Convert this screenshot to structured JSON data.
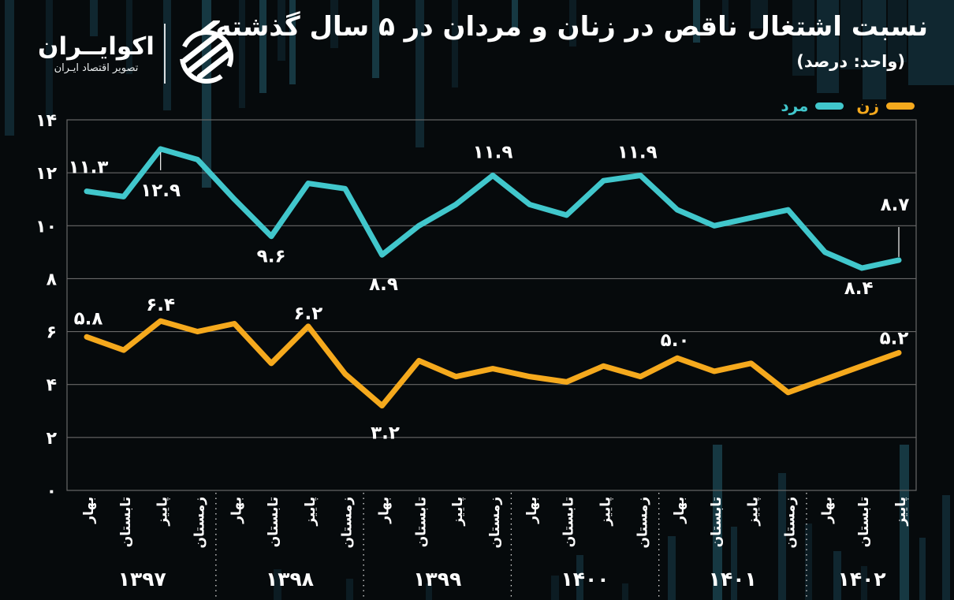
{
  "brand": {
    "name": "اکوایــران",
    "tagline": "تصویر اقتصاد ایـران",
    "logo_icon": "ecoiran-striped-globe"
  },
  "header": {
    "title": "نسبت اشتغال ناقص در زنان و مردان در ۵ سال گذشته",
    "subtitle": "(واحد: درصد)"
  },
  "legend": {
    "items": [
      {
        "key": "women",
        "label": "زن",
        "color": "#f5a91d"
      },
      {
        "key": "men",
        "label": "مرد",
        "color": "#41c7cc"
      }
    ]
  },
  "colors": {
    "background": "#060a0c",
    "grid": "#686868",
    "text": "#ffffff",
    "men_line": "#41c7cc",
    "women_line": "#f5a91d",
    "separator": "#dddddd"
  },
  "chart_data": {
    "type": "line",
    "title": "نسبت اشتغال ناقص در زنان و مردان در ۵ سال گذشته",
    "unit": "درصد",
    "xlabel": "",
    "ylabel": "",
    "ylim": [
      0,
      14
    ],
    "grid": true,
    "legend_position": "top-right",
    "yticks": [
      {
        "value": 0,
        "label": "۰"
      },
      {
        "value": 2,
        "label": "۲"
      },
      {
        "value": 4,
        "label": "۴"
      },
      {
        "value": 6,
        "label": "۶"
      },
      {
        "value": 8,
        "label": "۸"
      },
      {
        "value": 10,
        "label": "۱۰"
      },
      {
        "value": 12,
        "label": "۱۲"
      },
      {
        "value": 14,
        "label": "۱۴"
      }
    ],
    "years": [
      {
        "label": "۱۳۹۷",
        "count": 4
      },
      {
        "label": "۱۳۹۸",
        "count": 4
      },
      {
        "label": "۱۳۹۹",
        "count": 4
      },
      {
        "label": "۱۴۰۰",
        "count": 4
      },
      {
        "label": "۱۴۰۱",
        "count": 4
      },
      {
        "label": "۱۴۰۲",
        "count": 3
      }
    ],
    "categories": [
      "بهار",
      "تابستان",
      "پاییز",
      "زمستان",
      "بهار",
      "تابستان",
      "پاییز",
      "زمستان",
      "بهار",
      "تابستان",
      "پاییز",
      "زمستان",
      "بهار",
      "تابستان",
      "پاییز",
      "زمستان",
      "بهار",
      "تابستان",
      "پاییز",
      "زمستان",
      "بهار",
      "تابستان",
      "پاییز"
    ],
    "series": [
      {
        "key": "men",
        "name": "مرد",
        "color": "#41c7cc",
        "values": [
          11.3,
          11.1,
          12.9,
          12.5,
          11.0,
          9.6,
          11.6,
          11.4,
          8.9,
          10.0,
          10.8,
          11.9,
          10.8,
          10.4,
          11.7,
          11.9,
          10.6,
          10.0,
          10.3,
          10.6,
          9.0,
          8.4,
          8.7
        ],
        "point_labels": [
          {
            "i": 0,
            "text": "۱۱.۳",
            "dy": -23,
            "dx": 2
          },
          {
            "i": 2,
            "text": "۱۲.۹",
            "dy": 60,
            "dx": 0,
            "connector": [
              4,
              27
            ]
          },
          {
            "i": 5,
            "text": "۹.۶",
            "dy": 33,
            "dx": 0
          },
          {
            "i": 8,
            "text": "۸.۹",
            "dy": 45,
            "dx": 2
          },
          {
            "i": 11,
            "text": "۱۱.۹",
            "dy": -22,
            "dx": 0
          },
          {
            "i": 15,
            "text": "۱۱.۹",
            "dy": -22,
            "dx": -4
          },
          {
            "i": 21,
            "text": "۸.۴",
            "dy": 33,
            "dx": -4
          },
          {
            "i": 22,
            "text": "۸.۷",
            "dy": -63,
            "dx": -5,
            "connector": [
              -42,
              -4
            ]
          }
        ]
      },
      {
        "key": "women",
        "name": "زن",
        "color": "#f5a91d",
        "values": [
          5.8,
          5.3,
          6.4,
          6.0,
          6.3,
          4.8,
          6.2,
          4.4,
          3.2,
          4.9,
          4.3,
          4.6,
          4.3,
          4.1,
          4.7,
          4.3,
          5.0,
          4.5,
          4.8,
          3.7,
          4.2,
          4.7,
          5.2
        ],
        "point_labels": [
          {
            "i": 0,
            "text": "۵.۸",
            "dy": -16,
            "dx": 2
          },
          {
            "i": 2,
            "text": "۶.۴",
            "dy": -13,
            "dx": 0
          },
          {
            "i": 6,
            "text": "۶.۲",
            "dy": -9,
            "dx": 0
          },
          {
            "i": 8,
            "text": "۳.۲",
            "dy": 42,
            "dx": 4
          },
          {
            "i": 16,
            "text": "۵.۰",
            "dy": -15,
            "dx": -3
          },
          {
            "i": 22,
            "text": "۵.۲",
            "dy": -11,
            "dx": -6
          }
        ]
      }
    ]
  }
}
